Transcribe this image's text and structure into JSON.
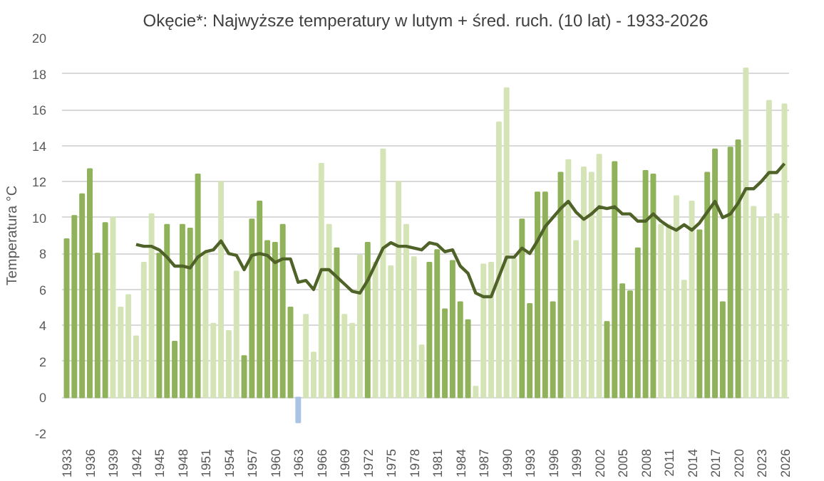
{
  "chart_data": {
    "type": "bar",
    "title": "Okęcie*: Najwyższe temperatury w lutym + śred. ruch. (10 lat) - 1933-2026",
    "ylabel": "Temperatura °C",
    "categories": [
      "1933",
      null,
      null,
      "1936",
      null,
      null,
      "1939",
      null,
      null,
      "1942",
      null,
      null,
      "1945",
      null,
      null,
      "1948",
      null,
      null,
      "1951",
      null,
      null,
      "1954",
      null,
      null,
      "1957",
      null,
      null,
      "1960",
      null,
      null,
      "1963",
      null,
      null,
      "1966",
      null,
      null,
      "1969",
      null,
      null,
      "1972",
      null,
      null,
      "1975",
      null,
      null,
      "1978",
      null,
      null,
      "1981",
      null,
      null,
      "1984",
      null,
      null,
      "1987",
      null,
      null,
      "1990",
      null,
      null,
      "1993",
      null,
      null,
      "1996",
      null,
      null,
      "1999",
      null,
      null,
      "2002",
      null,
      null,
      "2005",
      null,
      null,
      "2008",
      null,
      null,
      "2011",
      null,
      null,
      "2014",
      null,
      null,
      "2017",
      null,
      null,
      "2020",
      null,
      null,
      "2023",
      null,
      null,
      "2026"
    ],
    "ylim": [
      -2,
      20
    ],
    "yticks": [
      -2,
      0,
      2,
      4,
      6,
      8,
      10,
      12,
      14,
      16,
      18,
      20
    ],
    "grid": "y",
    "series": [
      {
        "values": [
          8.8,
          10.1,
          11.3,
          12.7,
          8.0,
          9.7,
          10.0,
          5.0,
          5.7,
          3.4,
          7.5,
          10.2,
          8.0,
          9.6,
          3.1,
          9.6,
          9.4,
          12.4,
          8.0,
          4.1,
          12.0,
          3.7,
          7.0,
          2.3,
          9.9,
          10.9,
          8.7,
          8.6,
          9.6,
          5.0,
          -1.4,
          4.6,
          2.5,
          13.0,
          9.6,
          8.3,
          4.6,
          4.1,
          7.9,
          8.6,
          7.5,
          13.8,
          7.3,
          12.0,
          9.6,
          7.8,
          2.9,
          7.5,
          8.2,
          4.9,
          7.6,
          5.3,
          4.3,
          0.6,
          7.4,
          7.5,
          15.3,
          17.2,
          7.7,
          9.9,
          5.2,
          11.4,
          11.4,
          5.3,
          12.5,
          13.2,
          8.7,
          12.8,
          12.5,
          13.5,
          4.2,
          13.1,
          6.3,
          5.9,
          8.3,
          12.6,
          12.4,
          9.6,
          9.6,
          11.2,
          6.5,
          10.9,
          9.3,
          12.5,
          13.8,
          5.3,
          13.9,
          14.3,
          18.3,
          10.6,
          10.0,
          16.5,
          10.2,
          16.3
        ],
        "colors": [
          "#8fb25a",
          "#8fb25a",
          "#8fb25a",
          "#8fb25a",
          "#8fb25a",
          "#8fb25a",
          "#d5e4b6",
          "#d5e4b6",
          "#d5e4b6",
          "#d5e4b6",
          "#d5e4b6",
          "#d5e4b6",
          "#8fb25a",
          "#8fb25a",
          "#8fb25a",
          "#8fb25a",
          "#8fb25a",
          "#8fb25a",
          "#d5e4b6",
          "#d5e4b6",
          "#d5e4b6",
          "#d5e4b6",
          "#d5e4b6",
          "#8fb25a",
          "#8fb25a",
          "#8fb25a",
          "#8fb25a",
          "#8fb25a",
          "#8fb25a",
          "#8fb25a",
          "#a9c4e4",
          "#d5e4b6",
          "#d5e4b6",
          "#d5e4b6",
          "#d5e4b6",
          "#8fb25a",
          "#d5e4b6",
          "#d5e4b6",
          "#d5e4b6",
          "#8fb25a",
          "#d5e4b6",
          "#d5e4b6",
          "#d5e4b6",
          "#d5e4b6",
          "#d5e4b6",
          "#d5e4b6",
          "#d5e4b6",
          "#8fb25a",
          "#8fb25a",
          "#8fb25a",
          "#8fb25a",
          "#8fb25a",
          "#8fb25a",
          "#d5e4b6",
          "#d5e4b6",
          "#d5e4b6",
          "#d5e4b6",
          "#d5e4b6",
          "#d5e4b6",
          "#8fb25a",
          "#8fb25a",
          "#8fb25a",
          "#8fb25a",
          "#8fb25a",
          "#8fb25a",
          "#d5e4b6",
          "#d5e4b6",
          "#d5e4b6",
          "#d5e4b6",
          "#d5e4b6",
          "#8fb25a",
          "#8fb25a",
          "#8fb25a",
          "#8fb25a",
          "#8fb25a",
          "#8fb25a",
          "#8fb25a",
          "#d5e4b6",
          "#d5e4b6",
          "#d5e4b6",
          "#d5e4b6",
          "#d5e4b6",
          "#8fb25a",
          "#8fb25a",
          "#8fb25a",
          "#8fb25a",
          "#8fb25a",
          "#8fb25a",
          "#d5e4b6",
          "#d5e4b6",
          "#d5e4b6",
          "#d5e4b6",
          "#d5e4b6",
          "#d5e4b6"
        ]
      },
      {
        "type": "line",
        "color": "#4f6228",
        "values": [
          null,
          null,
          null,
          null,
          null,
          null,
          null,
          null,
          null,
          8.5,
          8.4,
          8.4,
          8.2,
          7.8,
          7.3,
          7.3,
          7.2,
          7.8,
          8.1,
          8.2,
          8.7,
          8.0,
          7.9,
          7.1,
          7.9,
          8.0,
          7.9,
          7.5,
          7.7,
          7.7,
          6.4,
          6.5,
          6.0,
          7.1,
          7.1,
          6.7,
          6.3,
          5.9,
          5.8,
          6.5,
          7.4,
          8.3,
          8.6,
          8.4,
          8.4,
          8.3,
          8.2,
          8.6,
          8.5,
          8.1,
          8.2,
          7.3,
          6.9,
          5.8,
          5.6,
          5.6,
          6.7,
          7.8,
          7.8,
          8.3,
          8.0,
          8.7,
          9.5,
          10.0,
          10.5,
          10.9,
          10.3,
          9.9,
          10.2,
          10.6,
          10.5,
          10.6,
          10.2,
          10.2,
          9.8,
          9.8,
          10.2,
          9.8,
          9.5,
          9.3,
          9.6,
          9.3,
          9.7,
          10.3,
          10.9,
          10.0,
          10.2,
          10.8,
          11.6,
          11.6,
          12.0,
          12.5,
          12.5,
          13.0
        ]
      }
    ]
  }
}
